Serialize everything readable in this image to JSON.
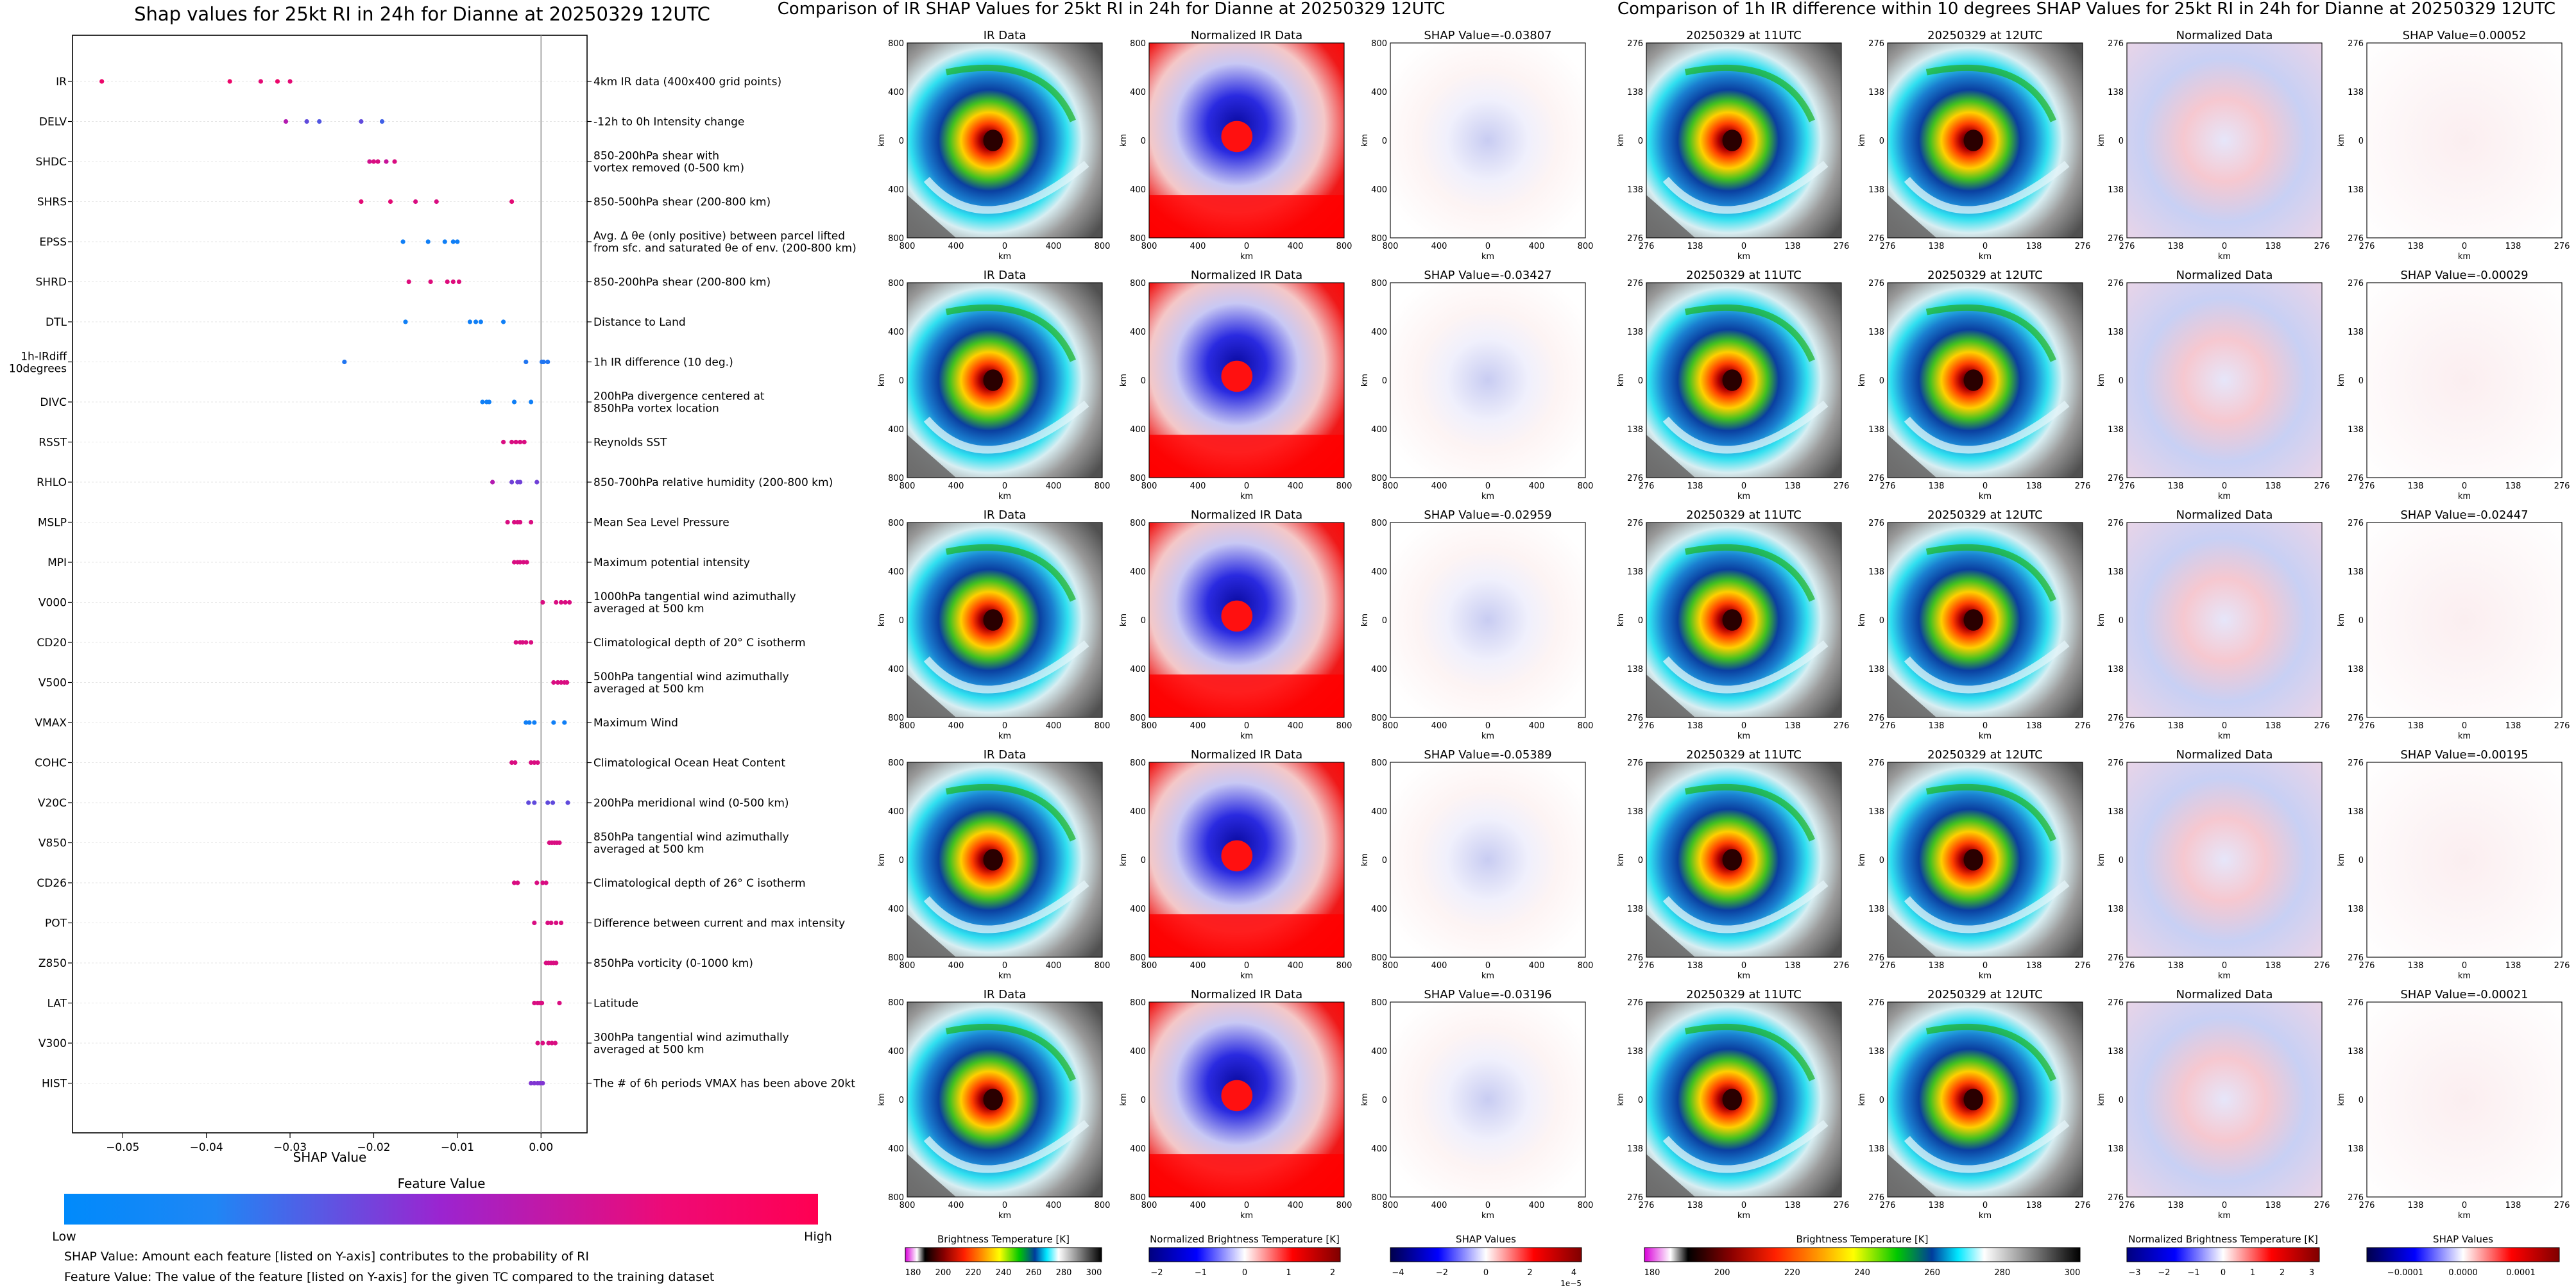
{
  "shap_panel": {
    "title": "Shap values for 25kt RI in 24h for Dianne at 20250329 12UTC",
    "xlabel": "SHAP Value",
    "colorbar_title": "Feature Value",
    "colorbar_low": "Low",
    "colorbar_high": "High",
    "note_line1": "SHAP Value: Amount each feature [listed on Y-axis] contributes to the probability of RI",
    "note_line2": "Feature Value: The value of the feature [listed on Y-axis] for the given TC compared to the training dataset"
  },
  "chart_data": [
    {
      "type": "scatter",
      "title": "Shap values for 25kt RI in 24h for Dianne at 20250329 12UTC",
      "xlabel": "SHAP Value",
      "xlim": [
        -0.056,
        0.0055
      ],
      "xticks": [
        "−0.05",
        "−0.04",
        "−0.03",
        "−0.02",
        "−0.01",
        "0.00"
      ],
      "xtick_values": [
        -0.05,
        -0.04,
        -0.03,
        -0.02,
        -0.01,
        0.0
      ],
      "colors": {
        "low": "#008afb",
        "mid": "#a020c8",
        "high": "#ff0052"
      },
      "features": [
        {
          "name": "IR",
          "desc": [
            "4km IR data (400x400 grid points)"
          ],
          "points": [
            [
              -0.0525,
              0.9
            ],
            [
              -0.0372,
              0.9
            ],
            [
              -0.0335,
              0.85
            ],
            [
              -0.0315,
              0.9
            ],
            [
              -0.03,
              0.85
            ]
          ]
        },
        {
          "name": "DELV",
          "desc": [
            "-12h to 0h Intensity change"
          ],
          "points": [
            [
              -0.0305,
              0.6
            ],
            [
              -0.028,
              0.3
            ],
            [
              -0.0265,
              0.25
            ],
            [
              -0.0215,
              0.3
            ],
            [
              -0.019,
              0.2
            ]
          ]
        },
        {
          "name": "SHDC",
          "desc": [
            "850-200hPa shear with",
            "vortex removed (0-500 km)"
          ],
          "points": [
            [
              -0.0205,
              0.75
            ],
            [
              -0.02,
              0.8
            ],
            [
              -0.0195,
              0.8
            ],
            [
              -0.0185,
              0.7
            ],
            [
              -0.0175,
              0.8
            ]
          ]
        },
        {
          "name": "SHRS",
          "desc": [
            "850-500hPa shear (200-800 km)"
          ],
          "points": [
            [
              -0.0215,
              0.85
            ],
            [
              -0.018,
              0.85
            ],
            [
              -0.015,
              0.8
            ],
            [
              -0.0125,
              0.8
            ],
            [
              -0.0035,
              0.85
            ]
          ]
        },
        {
          "name": "EPSS",
          "desc": [
            "Avg. Δ θe (only positive) between parcel lifted",
            "from sfc. and saturated θe of env. (200-800 km)"
          ],
          "points": [
            [
              -0.0165,
              0.05
            ],
            [
              -0.0135,
              0.05
            ],
            [
              -0.0115,
              0.05
            ],
            [
              -0.0105,
              0.05
            ],
            [
              -0.01,
              0.05
            ]
          ]
        },
        {
          "name": "SHRD",
          "desc": [
            "850-200hPa shear (200-800 km)"
          ],
          "points": [
            [
              -0.0158,
              0.82
            ],
            [
              -0.0132,
              0.82
            ],
            [
              -0.0112,
              0.82
            ],
            [
              -0.0105,
              0.82
            ],
            [
              -0.0098,
              0.82
            ]
          ]
        },
        {
          "name": "DTL",
          "desc": [
            "Distance to Land"
          ],
          "points": [
            [
              -0.0162,
              0.05
            ],
            [
              -0.0085,
              0.05
            ],
            [
              -0.0078,
              0.05
            ],
            [
              -0.0072,
              0.05
            ],
            [
              -0.0045,
              0.05
            ]
          ]
        },
        {
          "name": "1h-IRdiff\n10degrees",
          "desc": [
            "1h IR difference (10 deg.)"
          ],
          "points": [
            [
              -0.0235,
              0.1
            ],
            [
              -0.0018,
              0.1
            ],
            [
              0.0001,
              0.1
            ],
            [
              0.0003,
              0.1
            ],
            [
              0.0008,
              0.1
            ]
          ]
        },
        {
          "name": "DIVC",
          "desc": [
            "200hPa divergence centered at",
            "850hPa vortex location"
          ],
          "points": [
            [
              -0.007,
              0.05
            ],
            [
              -0.0065,
              0.05
            ],
            [
              -0.0062,
              0.05
            ],
            [
              -0.0032,
              0.05
            ],
            [
              -0.0012,
              0.05
            ]
          ]
        },
        {
          "name": "RSST",
          "desc": [
            "Reynolds SST"
          ],
          "points": [
            [
              -0.0045,
              0.8
            ],
            [
              -0.0035,
              0.8
            ],
            [
              -0.003,
              0.8
            ],
            [
              -0.0025,
              0.8
            ],
            [
              -0.002,
              0.8
            ]
          ]
        },
        {
          "name": "RHLO",
          "desc": [
            "850-700hPa relative humidity (200-800 km)"
          ],
          "points": [
            [
              -0.0058,
              0.6
            ],
            [
              -0.0035,
              0.35
            ],
            [
              -0.0028,
              0.35
            ],
            [
              -0.0025,
              0.35
            ],
            [
              -0.0005,
              0.35
            ]
          ]
        },
        {
          "name": "MSLP",
          "desc": [
            "Mean Sea Level Pressure"
          ],
          "points": [
            [
              -0.004,
              0.8
            ],
            [
              -0.0032,
              0.8
            ],
            [
              -0.0028,
              0.8
            ],
            [
              -0.0025,
              0.8
            ],
            [
              -0.0012,
              0.8
            ]
          ]
        },
        {
          "name": "MPI",
          "desc": [
            "Maximum potential intensity"
          ],
          "points": [
            [
              -0.0032,
              0.8
            ],
            [
              -0.0028,
              0.8
            ],
            [
              -0.0025,
              0.8
            ],
            [
              -0.0021,
              0.8
            ],
            [
              -0.0017,
              0.8
            ]
          ]
        },
        {
          "name": "V000",
          "desc": [
            "1000hPa tangential wind azimuthally",
            "averaged at 500 km"
          ],
          "points": [
            [
              0.0002,
              0.8
            ],
            [
              0.0018,
              0.8
            ],
            [
              0.0024,
              0.8
            ],
            [
              0.0029,
              0.8
            ],
            [
              0.0034,
              0.8
            ]
          ]
        },
        {
          "name": "CD20",
          "desc": [
            "Climatological depth of 20° C isotherm"
          ],
          "points": [
            [
              -0.003,
              0.8
            ],
            [
              -0.0025,
              0.8
            ],
            [
              -0.0022,
              0.8
            ],
            [
              -0.0018,
              0.8
            ],
            [
              -0.0012,
              0.8
            ]
          ]
        },
        {
          "name": "V500",
          "desc": [
            "500hPa tangential wind azimuthally",
            "averaged at 500 km"
          ],
          "points": [
            [
              0.0015,
              0.8
            ],
            [
              0.002,
              0.8
            ],
            [
              0.0024,
              0.8
            ],
            [
              0.0028,
              0.8
            ],
            [
              0.0031,
              0.8
            ]
          ]
        },
        {
          "name": "VMAX",
          "desc": [
            "Maximum Wind"
          ],
          "points": [
            [
              -0.0018,
              0.05
            ],
            [
              -0.0014,
              0.05
            ],
            [
              -0.0008,
              0.05
            ],
            [
              0.0015,
              0.05
            ],
            [
              0.0028,
              0.05
            ]
          ]
        },
        {
          "name": "COHC",
          "desc": [
            "Climatological Ocean Heat Content"
          ],
          "points": [
            [
              -0.0035,
              0.8
            ],
            [
              -0.0031,
              0.8
            ],
            [
              -0.0012,
              0.8
            ],
            [
              -0.0008,
              0.8
            ],
            [
              -0.0004,
              0.8
            ]
          ]
        },
        {
          "name": "V20C",
          "desc": [
            "200hPa meridional wind (0-500 km)"
          ],
          "points": [
            [
              -0.0015,
              0.3
            ],
            [
              -0.0008,
              0.3
            ],
            [
              0.0008,
              0.3
            ],
            [
              0.0014,
              0.3
            ],
            [
              0.0032,
              0.3
            ]
          ]
        },
        {
          "name": "V850",
          "desc": [
            "850hPa tangential wind azimuthally",
            "averaged at 500 km"
          ],
          "points": [
            [
              0.001,
              0.8
            ],
            [
              0.0013,
              0.8
            ],
            [
              0.0016,
              0.8
            ],
            [
              0.0019,
              0.8
            ],
            [
              0.0022,
              0.8
            ]
          ]
        },
        {
          "name": "CD26",
          "desc": [
            "Climatological depth of 26° C isotherm"
          ],
          "points": [
            [
              -0.0032,
              0.8
            ],
            [
              -0.0028,
              0.8
            ],
            [
              -0.0005,
              0.8
            ],
            [
              0.0002,
              0.8
            ],
            [
              0.0006,
              0.8
            ]
          ]
        },
        {
          "name": "POT",
          "desc": [
            "Difference between current and max intensity"
          ],
          "points": [
            [
              -0.0008,
              0.8
            ],
            [
              0.0008,
              0.8
            ],
            [
              0.0012,
              0.8
            ],
            [
              0.0018,
              0.8
            ],
            [
              0.0024,
              0.8
            ]
          ]
        },
        {
          "name": "Z850",
          "desc": [
            "850hPa vorticity (0-1000 km)"
          ],
          "points": [
            [
              0.0006,
              0.8
            ],
            [
              0.0009,
              0.8
            ],
            [
              0.0012,
              0.8
            ],
            [
              0.0015,
              0.8
            ],
            [
              0.0018,
              0.8
            ]
          ]
        },
        {
          "name": "LAT",
          "desc": [
            "Latitude"
          ],
          "points": [
            [
              -0.0008,
              0.8
            ],
            [
              -0.0004,
              0.8
            ],
            [
              -0.0001,
              0.8
            ],
            [
              0.0001,
              0.8
            ],
            [
              0.0022,
              0.8
            ]
          ]
        },
        {
          "name": "V300",
          "desc": [
            "300hPa tangential wind azimuthally",
            "averaged at 500 km"
          ],
          "points": [
            [
              -0.0004,
              0.8
            ],
            [
              0.0002,
              0.8
            ],
            [
              0.0009,
              0.8
            ],
            [
              0.0013,
              0.8
            ],
            [
              0.0017,
              0.8
            ]
          ]
        },
        {
          "name": "HIST",
          "desc": [
            "The # of 6h periods VMAX has been above 20kt"
          ],
          "points": [
            [
              -0.0012,
              0.4
            ],
            [
              -0.0008,
              0.4
            ],
            [
              -0.0004,
              0.4
            ],
            [
              -0.0001,
              0.4
            ],
            [
              0.0002,
              0.4
            ]
          ]
        }
      ]
    },
    {
      "type": "heatmap",
      "title": "Comparison of IR SHAP Values for 25kt RI in 24h for Dianne at 20250329 12UTC",
      "column_titles": [
        "IR Data",
        "Normalized IR Data"
      ],
      "shap_titles": [
        "SHAP Value=-0.03807",
        "SHAP Value=-0.03427",
        "SHAP Value=-0.02959",
        "SHAP Value=-0.05389",
        "SHAP Value=-0.03196"
      ],
      "axis_ticks": [
        "800",
        "400",
        "0",
        "400",
        "800"
      ],
      "axis_label": "km",
      "colorbars": [
        {
          "label": "Brightness Temperature [K]",
          "ticks": [
            "180",
            "200",
            "220",
            "240",
            "260",
            "280",
            "300"
          ]
        },
        {
          "label": "Normalized Brightness Temperature [K]",
          "ticks": [
            "−2",
            "−1",
            "0",
            "1",
            "2"
          ]
        },
        {
          "label": "SHAP Values",
          "ticks": [
            "−4",
            "−2",
            "0",
            "2",
            "4"
          ],
          "offset": "1e−5"
        }
      ]
    },
    {
      "type": "heatmap",
      "title": "Comparison of 1h IR difference within 10 degrees SHAP Values for 25kt RI in 24h for Dianne at 20250329 12UTC",
      "column_titles": [
        "20250329 at 11UTC",
        "20250329 at 12UTC",
        "Normalized Data"
      ],
      "shap_titles": [
        "SHAP Value=0.00052",
        "SHAP Value=-0.00029",
        "SHAP Value=-0.02447",
        "SHAP Value=-0.00195",
        "SHAP Value=-0.00021"
      ],
      "axis_ticks": [
        "276",
        "138",
        "0",
        "138",
        "276"
      ],
      "axis_label": "km",
      "colorbars": [
        {
          "label": "Brightness Temperature [K]",
          "ticks": [
            "180",
            "200",
            "220",
            "240",
            "260",
            "280",
            "300"
          ]
        },
        {
          "label": "Normalized Brightness Temperature [K]",
          "ticks": [
            "−3",
            "−2",
            "−1",
            "0",
            "1",
            "2",
            "3"
          ]
        },
        {
          "label": "SHAP Values",
          "ticks": [
            "−0.0001",
            "0.0000",
            "0.0001"
          ]
        }
      ]
    }
  ]
}
